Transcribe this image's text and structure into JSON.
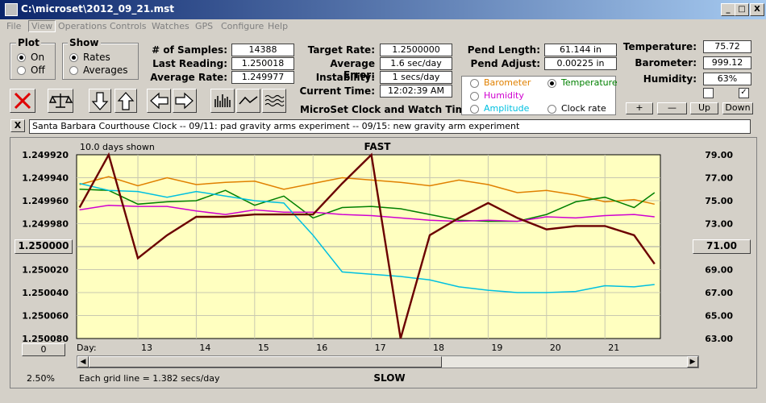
{
  "window": {
    "title": "C:\\microset\\2012_09_21.mst",
    "min": "_",
    "max": "□",
    "close": "X"
  },
  "menu": [
    "File",
    "View",
    "Operations",
    "Controls",
    "Watches",
    "GPS",
    "Configure",
    "Help"
  ],
  "plot": {
    "title": "Plot",
    "on": "On",
    "off": "Off",
    "selected": "On"
  },
  "show": {
    "title": "Show",
    "rates": "Rates",
    "averages": "Averages",
    "selected": "Rates"
  },
  "stats": [
    {
      "label": "# of Samples:",
      "value": "14388"
    },
    {
      "label": "Last Reading:",
      "value": "1.250018"
    },
    {
      "label": "Average Rate:",
      "value": "1.249977"
    }
  ],
  "rates": [
    {
      "label": "Target Rate:",
      "value": "1.2500000"
    },
    {
      "label": "Average Error:",
      "value": "1.6 sec/day"
    },
    {
      "label": "Instability:",
      "value": "1 secs/day"
    },
    {
      "label": "Current Time:",
      "value": "12:02:39 AM"
    }
  ],
  "pend": [
    {
      "label": "Pend Length:",
      "value": "61.144 in"
    },
    {
      "label": "Pend Adjust:",
      "value": "0.00225 in"
    }
  ],
  "env": [
    {
      "label": "Temperature:",
      "value": "75.72"
    },
    {
      "label": "Barometer:",
      "value": "999.12"
    },
    {
      "label": "Humidity:",
      "value": "63%"
    }
  ],
  "app_caption": "MicroSet Clock and Watch Timer",
  "sensors": {
    "barometer": {
      "label": "Barometer",
      "color": "#e08000"
    },
    "temperature": {
      "label": "Temperature",
      "color": "#008000",
      "selected": true
    },
    "humidity": {
      "label": "Humidity",
      "color": "#d000d0"
    },
    "amplitude": {
      "label": "Amplitude",
      "color": "#00c0e0"
    },
    "clock_rate": {
      "label": "Clock rate",
      "color": "#000000"
    }
  },
  "right_buttons": {
    "plus": "+",
    "minus": "—",
    "up": "Up",
    "down": "Down"
  },
  "notes": "Santa Barbara Courthouse Clock  --  09/11: pad gravity arms experiment  --  09/15: new gravity arm experiment",
  "close_x": "X",
  "chart_data": {
    "type": "line",
    "top_left_label": "10.0 days shown",
    "top_label": "FAST",
    "bottom_label": "SLOW",
    "left_ticks": [
      "1.249920",
      "1.249940",
      "1.249960",
      "1.249980",
      "1.250000",
      "1.250020",
      "1.250040",
      "1.250060",
      "1.250080"
    ],
    "right_ticks": [
      "79.00",
      "77.00",
      "75.00",
      "73.00",
      "71.00",
      "69.00",
      "67.00",
      "65.00",
      "63.00"
    ],
    "left_center_button": "1.250000",
    "right_center_button": "71.00",
    "zero_button": "0",
    "day_label": "Day:",
    "days": [
      "13",
      "14",
      "15",
      "16",
      "17",
      "18",
      "19",
      "20",
      "21"
    ],
    "percent": "2.50%",
    "grid_note": "Each grid line = 1.382 secs/day",
    "x": [
      12.0,
      12.5,
      13.0,
      13.5,
      14.0,
      14.5,
      15.0,
      15.5,
      16.0,
      16.5,
      17.0,
      17.5,
      18.0,
      18.5,
      19.0,
      19.5,
      20.0,
      20.5,
      21.0,
      21.5,
      21.85
    ],
    "series": [
      {
        "name": "Barometer",
        "color": "#e08000",
        "values": [
          76.4,
          77.1,
          76.3,
          77.0,
          76.4,
          76.6,
          76.7,
          76.0,
          76.5,
          77.0,
          76.8,
          76.6,
          76.3,
          76.8,
          76.4,
          75.7,
          75.9,
          75.5,
          74.9,
          75.1,
          74.7
        ]
      },
      {
        "name": "Temperature",
        "color": "#008000",
        "values": [
          76.0,
          75.9,
          74.7,
          74.9,
          75.0,
          75.9,
          74.6,
          75.4,
          73.5,
          74.4,
          74.5,
          74.3,
          73.8,
          73.3,
          73.2,
          73.2,
          73.8,
          74.9,
          75.3,
          74.4,
          75.7
        ]
      },
      {
        "name": "Humidity",
        "color": "#d000d0",
        "values": [
          74.2,
          74.6,
          74.5,
          74.5,
          74.1,
          73.8,
          74.2,
          74.0,
          74.0,
          73.8,
          73.7,
          73.5,
          73.3,
          73.2,
          73.3,
          73.2,
          73.6,
          73.5,
          73.7,
          73.8,
          73.6
        ]
      },
      {
        "name": "Amplitude",
        "color": "#00c0e0",
        "values": [
          76.5,
          75.9,
          75.8,
          75.3,
          75.8,
          75.4,
          75.0,
          74.8,
          72.0,
          68.8,
          68.6,
          68.4,
          68.1,
          67.5,
          67.2,
          67.0,
          67.0,
          67.1,
          67.6,
          67.5,
          67.7
        ]
      },
      {
        "name": "Clock rate",
        "color": "#6b0000",
        "values": [
          74.4,
          79.0,
          70.0,
          72.0,
          73.6,
          73.6,
          73.8,
          73.8,
          73.8,
          76.5,
          79.0,
          63.0,
          72.0,
          73.5,
          74.8,
          73.5,
          72.5,
          72.8,
          72.8,
          72.0,
          69.5
        ]
      }
    ]
  }
}
